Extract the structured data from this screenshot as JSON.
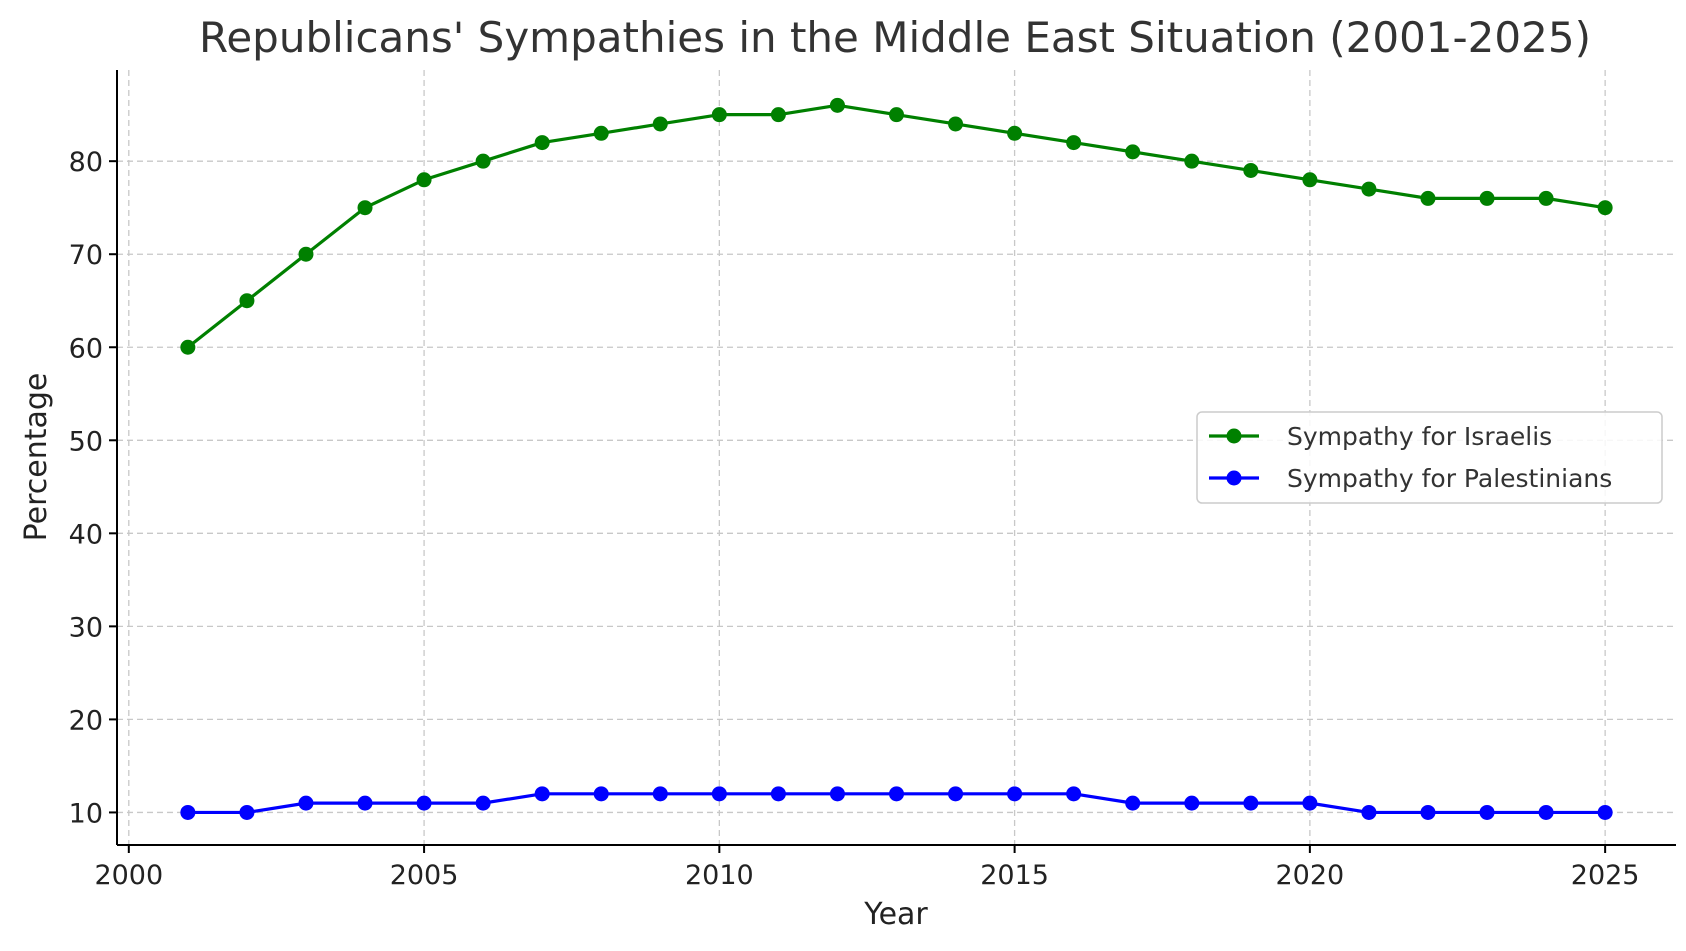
{
  "chart_data": {
    "type": "line",
    "title": "Republicans' Sympathies in the Middle East Situation (2001-2025)",
    "xlabel": "Year",
    "ylabel": "Percentage",
    "xlim": [
      1999.8,
      2026.2
    ],
    "ylim": [
      6.5,
      89.8
    ],
    "xticks": [
      2000,
      2005,
      2010,
      2015,
      2020,
      2025
    ],
    "yticks": [
      10,
      20,
      30,
      40,
      50,
      60,
      70,
      80
    ],
    "grid": true,
    "legend_position": "center-right",
    "x": [
      2001,
      2002,
      2003,
      2004,
      2005,
      2006,
      2007,
      2008,
      2009,
      2010,
      2011,
      2012,
      2013,
      2014,
      2015,
      2016,
      2017,
      2018,
      2019,
      2020,
      2021,
      2022,
      2023,
      2024,
      2025
    ],
    "series": [
      {
        "name": "Sympathy for Israelis",
        "color": "#008000",
        "values": [
          60,
          65,
          70,
          75,
          78,
          80,
          82,
          83,
          84,
          85,
          85,
          86,
          85,
          84,
          83,
          82,
          81,
          80,
          79,
          78,
          77,
          76,
          76,
          76,
          75
        ]
      },
      {
        "name": "Sympathy for Palestinians",
        "color": "#0000ff",
        "values": [
          10,
          10,
          11,
          11,
          11,
          11,
          12,
          12,
          12,
          12,
          12,
          12,
          12,
          12,
          12,
          12,
          11,
          11,
          11,
          11,
          10,
          10,
          10,
          10,
          10
        ]
      }
    ]
  }
}
